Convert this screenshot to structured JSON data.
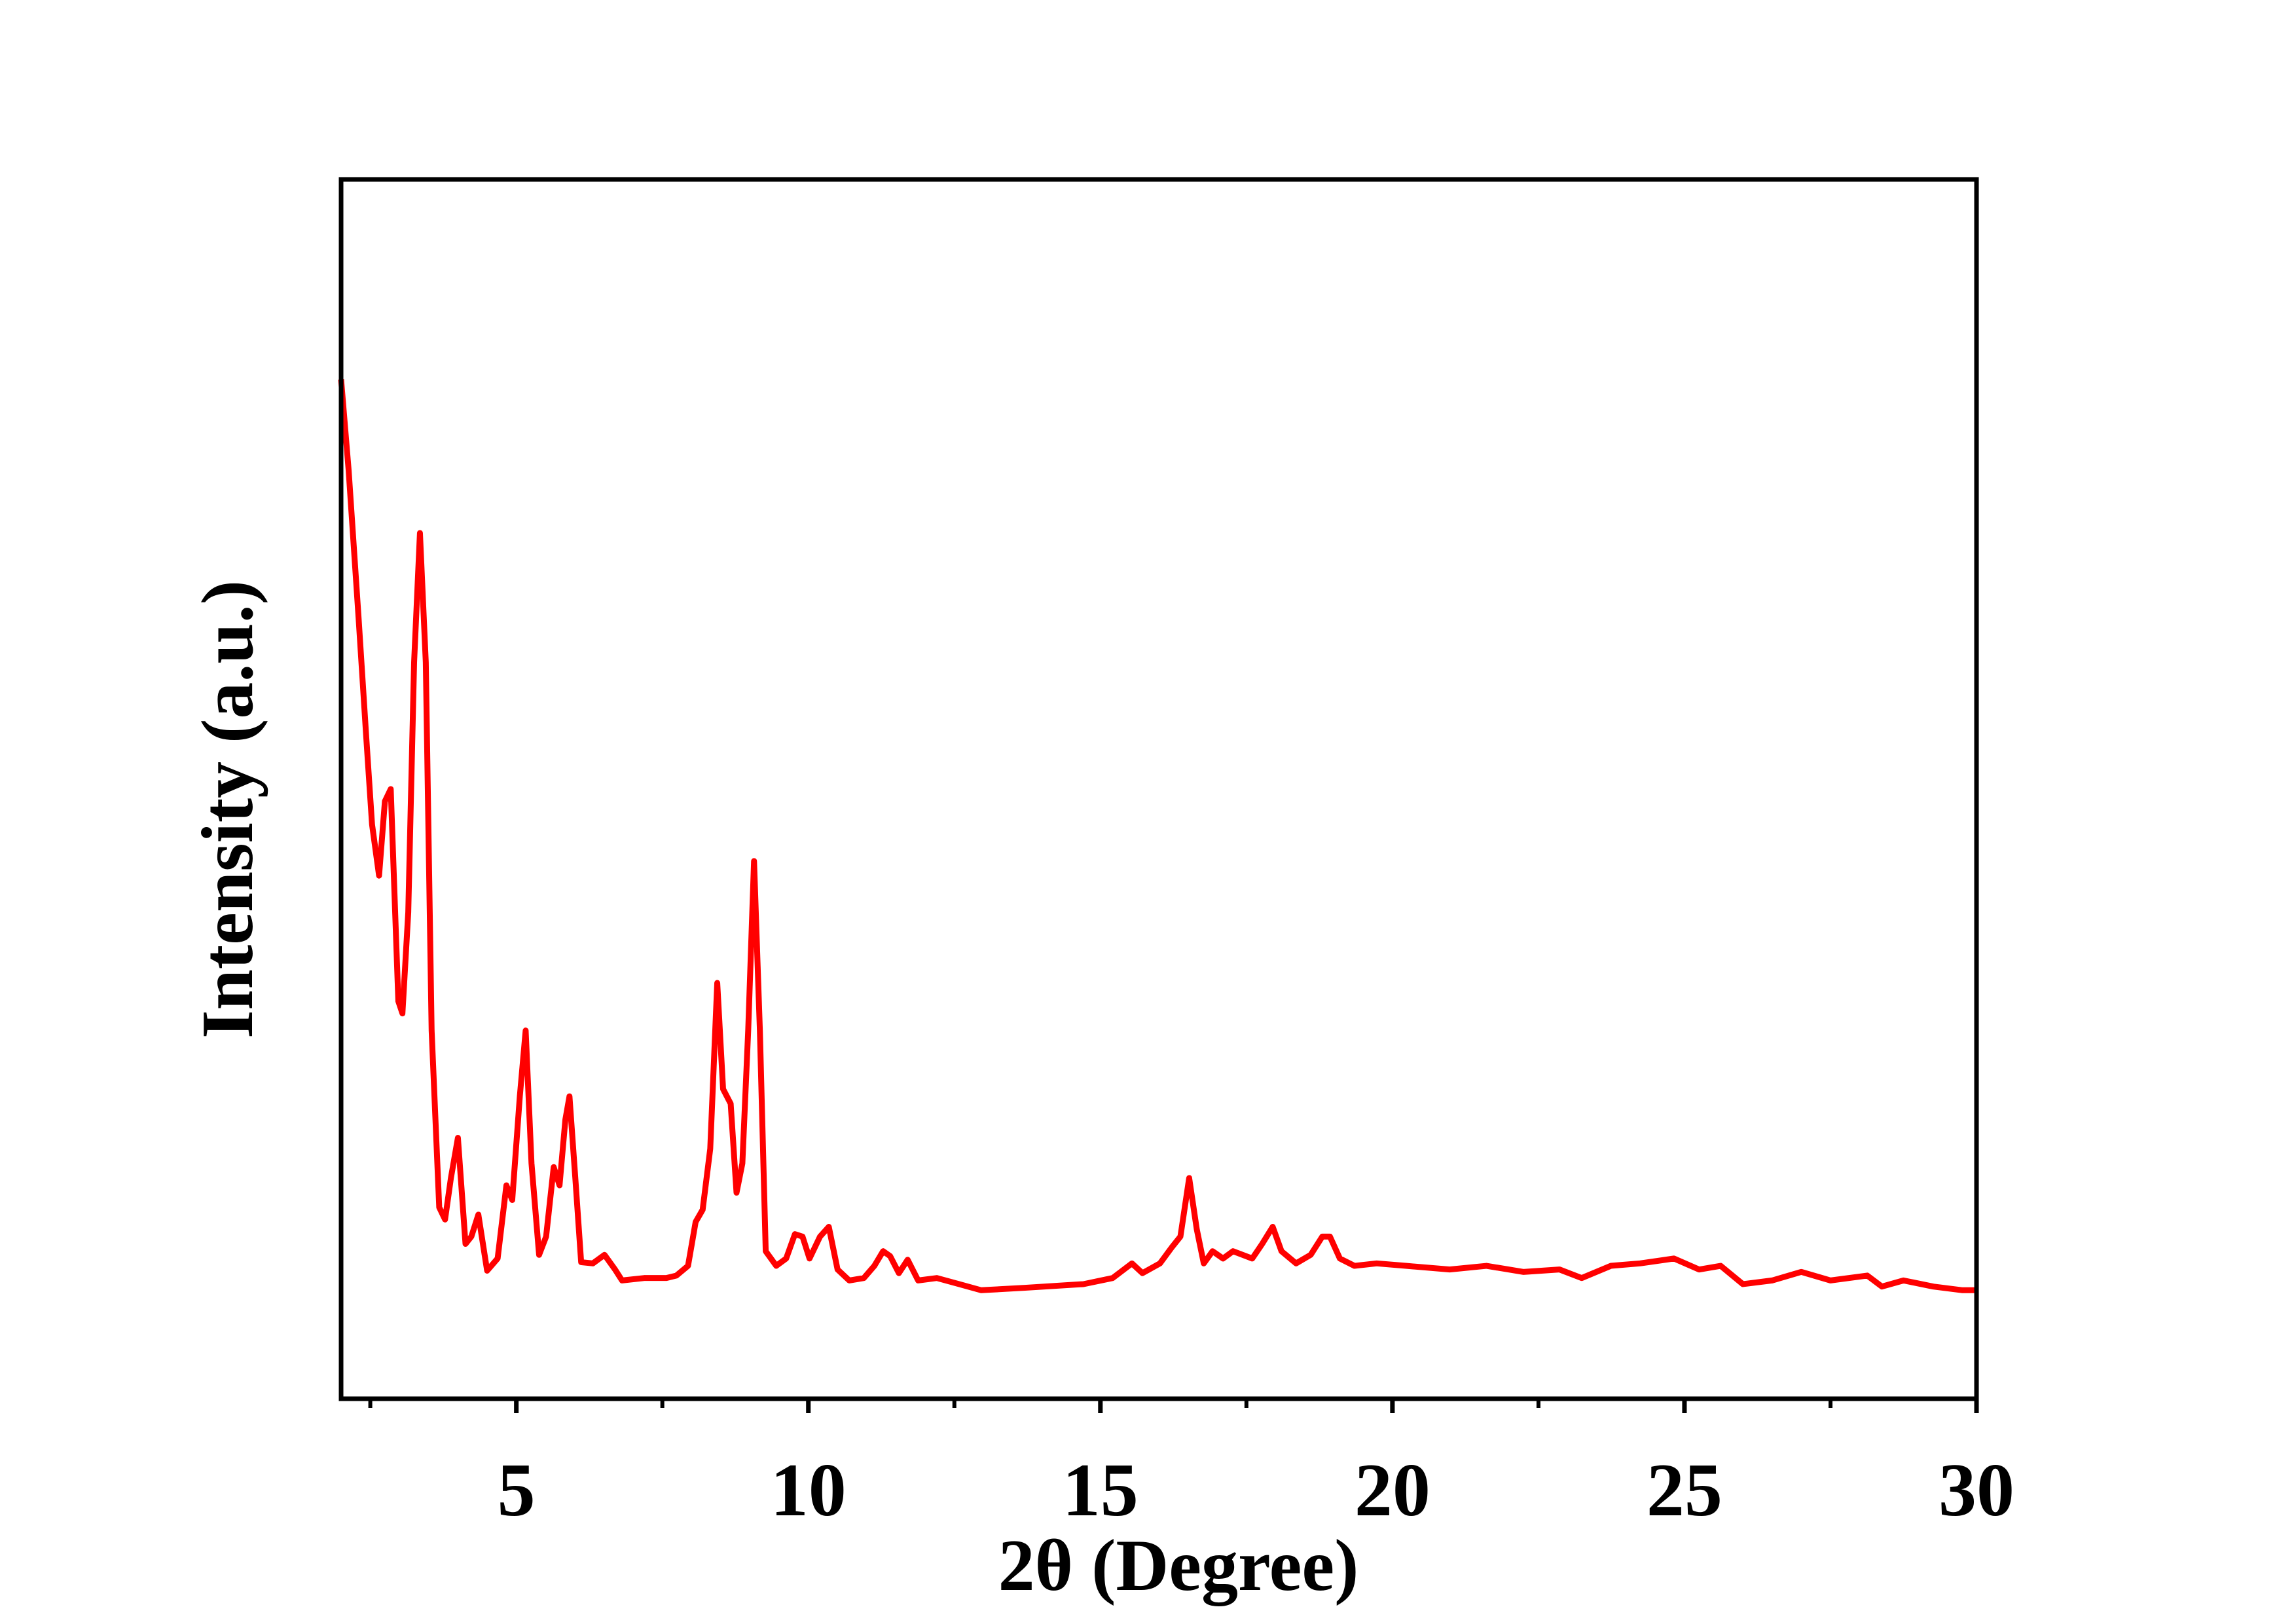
{
  "chart_data": {
    "type": "line",
    "xlabel": "2θ (Degree)",
    "ylabel": "Intensity (a.u.)",
    "xlim": [
      2,
      30
    ],
    "ylim": [
      0,
      100
    ],
    "xticks": [
      5,
      10,
      15,
      20,
      25,
      30
    ],
    "xminor_ticks": [
      2.5,
      7.5,
      12.5,
      17.5,
      22.5,
      27.5
    ],
    "x": [
      2.0,
      2.13,
      2.3,
      2.43,
      2.53,
      2.65,
      2.75,
      2.85,
      2.98,
      3.05,
      3.15,
      3.25,
      3.35,
      3.45,
      3.55,
      3.68,
      3.78,
      3.88,
      4.0,
      4.13,
      4.23,
      4.35,
      4.5,
      4.68,
      4.83,
      4.93,
      5.06,
      5.16,
      5.26,
      5.39,
      5.51,
      5.64,
      5.74,
      5.84,
      5.91,
      6.01,
      6.11,
      6.31,
      6.51,
      6.69,
      6.81,
      7.19,
      7.57,
      7.74,
      7.94,
      8.07,
      8.19,
      8.32,
      8.44,
      8.54,
      8.67,
      8.77,
      8.87,
      8.97,
      9.07,
      9.17,
      9.27,
      9.45,
      9.62,
      9.77,
      9.9,
      10.02,
      10.2,
      10.35,
      10.5,
      10.7,
      10.95,
      11.13,
      11.28,
      11.4,
      11.55,
      11.7,
      11.88,
      12.2,
      12.58,
      12.96,
      13.71,
      14.71,
      15.21,
      15.54,
      15.72,
      16.02,
      16.22,
      16.37,
      16.52,
      16.65,
      16.77,
      16.92,
      17.1,
      17.27,
      17.6,
      17.77,
      17.95,
      18.1,
      18.35,
      18.6,
      18.8,
      18.93,
      19.1,
      19.35,
      19.73,
      20.23,
      20.98,
      21.61,
      22.24,
      22.86,
      23.24,
      23.74,
      24.24,
      24.82,
      25.25,
      25.62,
      26.0,
      26.5,
      27.0,
      27.5,
      28.13,
      28.38,
      28.75,
      29.26,
      29.76,
      30.0
    ],
    "series": [
      {
        "color": "#ff0000",
        "values": [
          83.6,
          76.1,
          64,
          54.3,
          47.1,
          42.9,
          49,
          50,
          32.6,
          31.6,
          39.9,
          60.4,
          71,
          60.4,
          30.2,
          15.7,
          14.7,
          18.1,
          21.4,
          12.7,
          13.3,
          15.1,
          10.5,
          11.5,
          17.5,
          16.3,
          24.8,
          30.2,
          19.3,
          11.8,
          13.3,
          19,
          17.5,
          22.9,
          24.8,
          18.1,
          11.2,
          11.1,
          11.8,
          10.6,
          9.7,
          9.9,
          9.9,
          10.1,
          10.9,
          14.5,
          15.5,
          20.5,
          34.1,
          25.4,
          24.2,
          16.9,
          19.3,
          30.2,
          44.1,
          30.2,
          12.1,
          10.9,
          11.5,
          13.5,
          13.3,
          11.5,
          13.3,
          14.1,
          10.6,
          9.7,
          9.9,
          10.9,
          12.1,
          11.7,
          10.3,
          11.4,
          9.7,
          9.9,
          9.4,
          8.9,
          9.1,
          9.4,
          9.9,
          11.1,
          10.3,
          11.1,
          12.4,
          13.3,
          18.1,
          13.9,
          11.1,
          12.1,
          11.5,
          12.1,
          11.5,
          12.7,
          14.1,
          12.1,
          11.1,
          11.8,
          13.3,
          13.3,
          11.5,
          10.9,
          11.1,
          10.9,
          10.6,
          10.9,
          10.4,
          10.6,
          9.9,
          10.9,
          11.1,
          11.5,
          10.6,
          10.9,
          9.4,
          9.7,
          10.4,
          9.7,
          10.1,
          9.2,
          9.7,
          9.2,
          8.9,
          8.9
        ]
      }
    ]
  }
}
